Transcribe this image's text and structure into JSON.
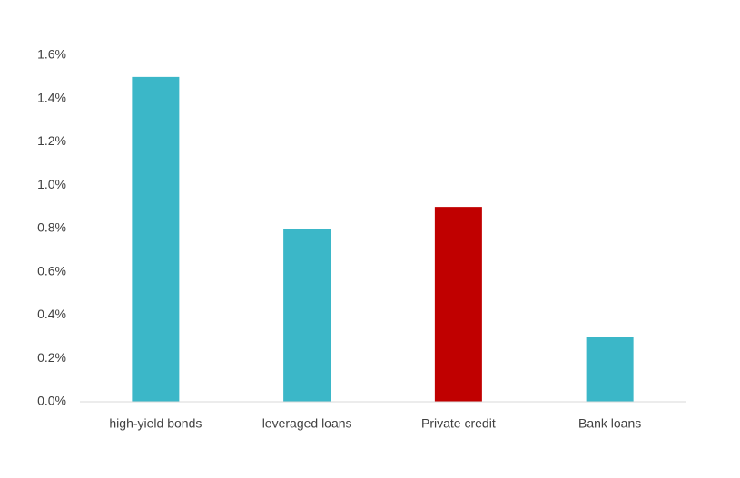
{
  "chart_data": {
    "type": "bar",
    "categories": [
      "high-yield bonds",
      "leveraged loans",
      "Private credit",
      "Bank loans"
    ],
    "values": [
      1.5,
      0.8,
      0.9,
      0.3
    ],
    "colors": [
      "#3bb7c8",
      "#3bb7c8",
      "#c00000",
      "#3bb7c8"
    ],
    "ylim": [
      0,
      1.6
    ],
    "yticks": [
      {
        "value": 0,
        "label": "0.0%"
      },
      {
        "value": 0.2,
        "label": "0.2%"
      },
      {
        "value": 0.4,
        "label": "0.4%"
      },
      {
        "value": 0.6,
        "label": "0.6%"
      },
      {
        "value": 0.8,
        "label": "0.8%"
      },
      {
        "value": 1.0,
        "label": "1.0%"
      },
      {
        "value": 1.2,
        "label": "1.2%"
      },
      {
        "value": 1.4,
        "label": "1.4%"
      },
      {
        "value": 1.6,
        "label": "1.6%"
      }
    ],
    "grid": false
  }
}
